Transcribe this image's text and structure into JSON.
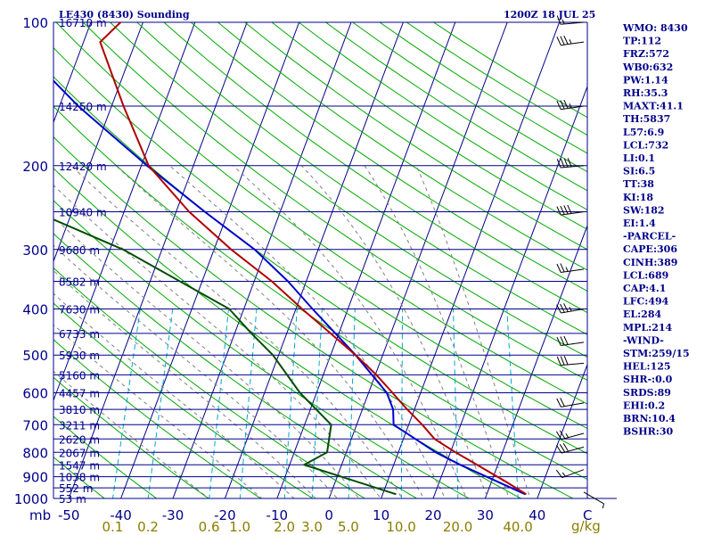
{
  "header": {
    "station": "LE430 (8430) Sounding",
    "time": "1200Z 18 JUL 25"
  },
  "colors": {
    "isobar": "#00008b",
    "isotherm": "#00008b",
    "dry_adiabat": "#00aa00",
    "moist_adiabat": "#808080",
    "mixing_ratio": "#00aacc",
    "temperature": "#b00000",
    "dewpoint": "#004d00",
    "parcel": "#0000cc",
    "wind_barb": "#000000",
    "mixing_ratio_label": "#8b7d00"
  },
  "axes": {
    "pressure_corner_label": "mb",
    "temperature_unit_label": "C",
    "mixing_ratio_unit_label": "g/kg"
  },
  "chart_data": {
    "type": "skew-t log-p sounding",
    "title": "LE430 (8430) Sounding",
    "valid_time": "1200Z 18 JUL 25",
    "pressure_levels": [
      {
        "p": 100,
        "label": "100",
        "height": "16710 m"
      },
      {
        "p": 150,
        "label": "",
        "height": "14250 m"
      },
      {
        "p": 200,
        "label": "200",
        "height": "12420 m"
      },
      {
        "p": 250,
        "label": "",
        "height": "10940 m"
      },
      {
        "p": 300,
        "label": "300",
        "height": "9680 m"
      },
      {
        "p": 350,
        "label": "",
        "height": "8582 m"
      },
      {
        "p": 400,
        "label": "400",
        "height": "7630 m"
      },
      {
        "p": 450,
        "label": "",
        "height": "6733 m"
      },
      {
        "p": 500,
        "label": "500",
        "height": "5930 m"
      },
      {
        "p": 550,
        "label": "",
        "height": "5160 m"
      },
      {
        "p": 600,
        "label": "600",
        "height": "4457 m"
      },
      {
        "p": 650,
        "label": "",
        "height": "3810 m"
      },
      {
        "p": 700,
        "label": "700",
        "height": "3211 m"
      },
      {
        "p": 750,
        "label": "",
        "height": "2620 m"
      },
      {
        "p": 800,
        "label": "800",
        "height": "2067 m"
      },
      {
        "p": 850,
        "label": "",
        "height": "1547 m"
      },
      {
        "p": 900,
        "label": "900",
        "height": "1038 m"
      },
      {
        "p": 950,
        "label": "",
        "height": "552 m"
      },
      {
        "p": 1000,
        "label": "1000",
        "height": "53 m"
      }
    ],
    "x_axis_ticks": [
      -50,
      -40,
      -30,
      -20,
      -10,
      0,
      10,
      20,
      30,
      40
    ],
    "mixing_ratio_ticks": [
      0.1,
      0.2,
      0.6,
      1.0,
      2.0,
      3.0,
      5.0,
      10.0,
      20.0,
      40.0
    ],
    "mixing_ratio_tick_labels": [
      "0.1",
      "0.2",
      "0.6",
      "1.0",
      "2.0",
      "3.0",
      "5.0",
      "10.0",
      "20.0",
      "40.0"
    ],
    "temperature": [
      {
        "p": 980,
        "t": 37.6
      },
      {
        "p": 925,
        "t": 33
      },
      {
        "p": 850,
        "t": 26
      },
      {
        "p": 800,
        "t": 21
      },
      {
        "p": 750,
        "t": 16
      },
      {
        "p": 700,
        "t": 12.6
      },
      {
        "p": 650,
        "t": 8.6
      },
      {
        "p": 600,
        "t": 4.6
      },
      {
        "p": 550,
        "t": 0.2
      },
      {
        "p": 500,
        "t": -5.2
      },
      {
        "p": 450,
        "t": -11.6
      },
      {
        "p": 400,
        "t": -18.8
      },
      {
        "p": 350,
        "t": -26.6
      },
      {
        "p": 300,
        "t": -36.7
      },
      {
        "p": 250,
        "t": -47.5
      },
      {
        "p": 200,
        "t": -58.6
      },
      {
        "p": 150,
        "t": -67.7
      },
      {
        "p": 110,
        "t": -76.8
      },
      {
        "p": 100,
        "t": -74.3
      }
    ],
    "dewpoint": [
      {
        "p": 980,
        "t": 12.6
      },
      {
        "p": 850,
        "t": -7.2
      },
      {
        "p": 800,
        "t": -3.7
      },
      {
        "p": 700,
        "t": -4.9
      },
      {
        "p": 600,
        "t": -13.2
      },
      {
        "p": 500,
        "t": -21.1
      },
      {
        "p": 450,
        "t": -26.8
      },
      {
        "p": 400,
        "t": -32.8
      },
      {
        "p": 300,
        "t": -57.5
      },
      {
        "p": 250,
        "t": -77
      },
      {
        "p": 200,
        "t": -80.4
      },
      {
        "p": 150,
        "t": -91.1
      },
      {
        "p": 130,
        "t": -93.8
      },
      {
        "p": 110,
        "t": -96.2
      },
      {
        "p": 100,
        "t": -98.8
      }
    ],
    "parcel": [
      {
        "p": 980,
        "t": 37.4
      },
      {
        "p": 850,
        "t": 22.8
      },
      {
        "p": 800,
        "t": 17.2
      },
      {
        "p": 700,
        "t": 7.1
      },
      {
        "p": 650,
        "t": 5.9
      },
      {
        "p": 600,
        "t": 3.5
      },
      {
        "p": 500,
        "t": -5.2
      },
      {
        "p": 400,
        "t": -16.8
      },
      {
        "p": 350,
        "t": -23.5
      },
      {
        "p": 300,
        "t": -32.2
      },
      {
        "p": 250,
        "t": -44.5
      },
      {
        "p": 200,
        "t": -58.9
      },
      {
        "p": 150,
        "t": -76.4
      },
      {
        "p": 100,
        "t": -98.2
      }
    ],
    "wind_barbs": [
      {
        "p": 970,
        "dir": 120,
        "spd": 5
      },
      {
        "p": 870,
        "dir": 250,
        "spd": 15
      },
      {
        "p": 780,
        "dir": 255,
        "spd": 30
      },
      {
        "p": 730,
        "dir": 255,
        "spd": 25
      },
      {
        "p": 630,
        "dir": 260,
        "spd": 20
      },
      {
        "p": 520,
        "dir": 265,
        "spd": 30
      },
      {
        "p": 470,
        "dir": 262,
        "spd": 30
      },
      {
        "p": 400,
        "dir": 260,
        "spd": 35
      },
      {
        "p": 330,
        "dir": 262,
        "spd": 25
      },
      {
        "p": 250,
        "dir": 262,
        "spd": 40
      },
      {
        "p": 200,
        "dir": 265,
        "spd": 40
      },
      {
        "p": 150,
        "dir": 262,
        "spd": 35
      },
      {
        "p": 110,
        "dir": 262,
        "spd": 35
      },
      {
        "p": 100,
        "dir": 265,
        "spd": 15
      }
    ]
  },
  "indices": [
    "WMO: 8430",
    "TP:112",
    "FRZ:572",
    "WB0:632",
    "PW:1.14",
    "RH:35.3",
    "MAXT:41.1",
    "TH:5837",
    "L57:6.9",
    "LCL:732",
    "LI:0.1",
    "SI:6.5",
    "TT:38",
    "KI:18",
    "SW:182",
    "EI:1.4",
    "-PARCEL-",
    "CAPE:306",
    "CINH:389",
    "LCL:689",
    "CAP:4.1",
    "LFC:494",
    "EL:284",
    "MPL:214",
    "-WIND-",
    "STM:259/15",
    "HEL:125",
    "SHR-:0.0",
    "SRDS:89",
    "EHI:0.2",
    "BRN:10.4",
    "BSHR:30"
  ]
}
